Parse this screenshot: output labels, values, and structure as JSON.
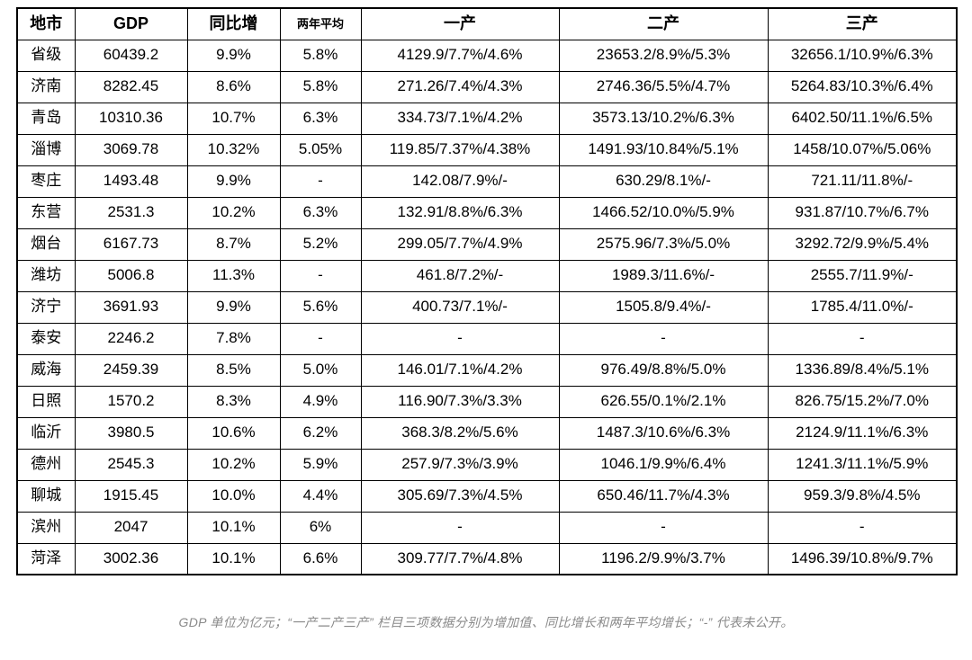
{
  "chart_data": {
    "type": "table",
    "title": "",
    "columns": [
      "地市",
      "GDP",
      "同比增",
      "两年平均",
      "一产",
      "二产",
      "三产"
    ],
    "rows": [
      [
        "省级",
        "60439.2",
        "9.9%",
        "5.8%",
        "4129.9/7.7%/4.6%",
        "23653.2/8.9%/5.3%",
        "32656.1/10.9%/6.3%"
      ],
      [
        "济南",
        "8282.45",
        "8.6%",
        "5.8%",
        "271.26/7.4%/4.3%",
        "2746.36/5.5%/4.7%",
        "5264.83/10.3%/6.4%"
      ],
      [
        "青岛",
        "10310.36",
        "10.7%",
        "6.3%",
        "334.73/7.1%/4.2%",
        "3573.13/10.2%/6.3%",
        "6402.50/11.1%/6.5%"
      ],
      [
        "淄博",
        "3069.78",
        "10.32%",
        "5.05%",
        "119.85/7.37%/4.38%",
        "1491.93/10.84%/5.1%",
        "1458/10.07%/5.06%"
      ],
      [
        "枣庄",
        "1493.48",
        "9.9%",
        "-",
        "142.08/7.9%/-",
        "630.29/8.1%/-",
        "721.11/11.8%/-"
      ],
      [
        "东营",
        "2531.3",
        "10.2%",
        "6.3%",
        "132.91/8.8%/6.3%",
        "1466.52/10.0%/5.9%",
        "931.87/10.7%/6.7%"
      ],
      [
        "烟台",
        "6167.73",
        "8.7%",
        "5.2%",
        "299.05/7.7%/4.9%",
        "2575.96/7.3%/5.0%",
        "3292.72/9.9%/5.4%"
      ],
      [
        "潍坊",
        "5006.8",
        "11.3%",
        "-",
        "461.8/7.2%/-",
        "1989.3/11.6%/-",
        "2555.7/11.9%/-"
      ],
      [
        "济宁",
        "3691.93",
        "9.9%",
        "5.6%",
        "400.73/7.1%/-",
        "1505.8/9.4%/-",
        "1785.4/11.0%/-"
      ],
      [
        "泰安",
        "2246.2",
        "7.8%",
        "-",
        "-",
        "-",
        "-"
      ],
      [
        "威海",
        "2459.39",
        "8.5%",
        "5.0%",
        "146.01/7.1%/4.2%",
        "976.49/8.8%/5.0%",
        "1336.89/8.4%/5.1%"
      ],
      [
        "日照",
        "1570.2",
        "8.3%",
        "4.9%",
        "116.90/7.3%/3.3%",
        "626.55/0.1%/2.1%",
        "826.75/15.2%/7.0%"
      ],
      [
        "临沂",
        "3980.5",
        "10.6%",
        "6.2%",
        "368.3/8.2%/5.6%",
        "1487.3/10.6%/6.3%",
        "2124.9/11.1%/6.3%"
      ],
      [
        "德州",
        "2545.3",
        "10.2%",
        "5.9%",
        "257.9/7.3%/3.9%",
        "1046.1/9.9%/6.4%",
        "1241.3/11.1%/5.9%"
      ],
      [
        "聊城",
        "1915.45",
        "10.0%",
        "4.4%",
        "305.69/7.3%/4.5%",
        "650.46/11.7%/4.3%",
        "959.3/9.8%/4.5%"
      ],
      [
        "滨州",
        "2047",
        "10.1%",
        "6%",
        "-",
        "-",
        "-"
      ],
      [
        "菏泽",
        "3002.36",
        "10.1%",
        "6.6%",
        "309.77/7.7%/4.8%",
        "1196.2/9.9%/3.7%",
        "1496.39/10.8%/9.7%"
      ]
    ]
  },
  "footnote": "GDP 单位为亿元；“一产二产三产” 栏目三项数据分别为增加值、同比增长和两年平均增长；“-” 代表未公开。"
}
